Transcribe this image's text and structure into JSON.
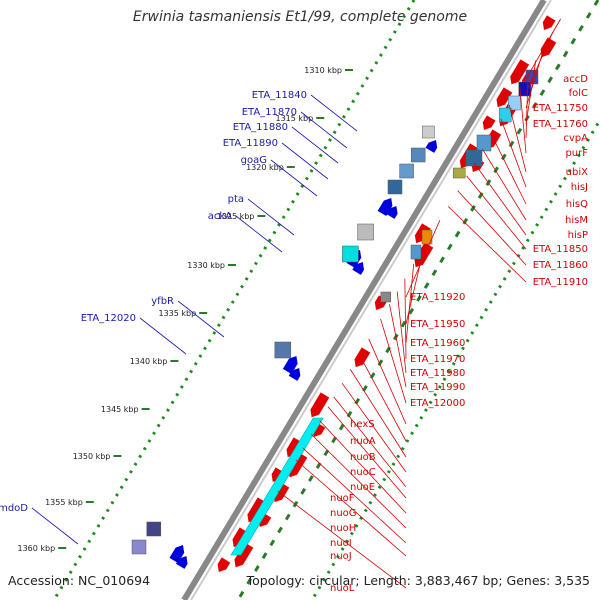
{
  "title": "Erwinia tasmaniensis Et1/99, complete genome",
  "accession": "Accession: NC_010694",
  "topology": "Topology: circular; Length: 3,883,467 bp; Genes: 3,535",
  "colors": {
    "forward_gene": "#e00000",
    "reverse_gene": "#0000dd",
    "backbone": "#888888",
    "gc_dots": "#1a8c1a",
    "label_forward": "#d40000",
    "label_reverse": "#1a1aaa"
  },
  "kbp_ticks": [
    "1310 kbp",
    "1315 kbp",
    "1320 kbp",
    "1325 kbp",
    "1330 kbp",
    "1335 kbp",
    "1340 kbp",
    "1345 kbp",
    "1350 kbp",
    "1355 kbp",
    "1360 kbp"
  ],
  "labels_forward": [
    "accD",
    "folC",
    "ETA_11750",
    "ETA_11760",
    "cvpA",
    "purF",
    "ubiX",
    "hisJ",
    "hisQ",
    "hisM",
    "hisP",
    "ETA_11850",
    "ETA_11860",
    "ETA_11910",
    "ETA_11920",
    "ETA_11950",
    "ETA_11960",
    "ETA_11970",
    "ETA_11980",
    "ETA_11990",
    "ETA_12000",
    "hexS",
    "nuoA",
    "nuoB",
    "nuoC",
    "nuoE",
    "nuoF",
    "nuoG",
    "nuoH",
    "nuoI",
    "nuoJ",
    "nuoL"
  ],
  "labels_reverse": [
    "ETA_11840",
    "ETA_11870",
    "ETA_11880",
    "ETA_11890",
    "goaG",
    "pta",
    "ackA",
    "yfbR",
    "ETA_12020",
    "mdoD"
  ]
}
